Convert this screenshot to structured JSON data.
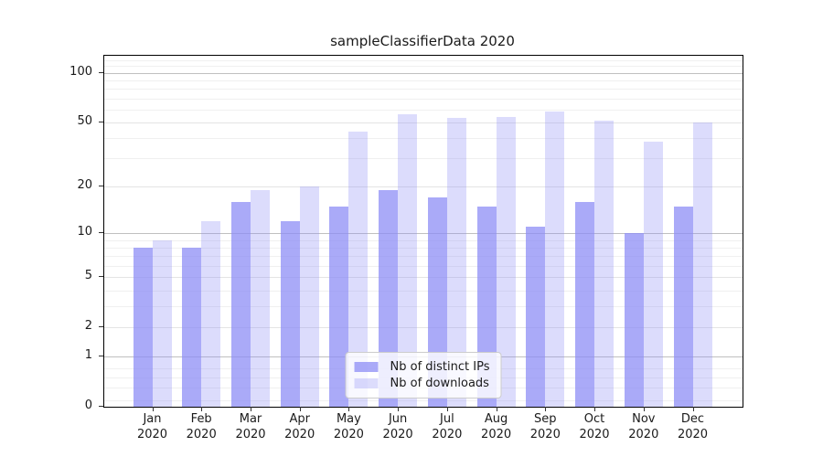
{
  "chart_data": {
    "type": "bar",
    "title": "sampleClassifierData 2020",
    "categories": [
      "Jan",
      "Feb",
      "Mar",
      "Apr",
      "May",
      "Jun",
      "Jul",
      "Aug",
      "Sep",
      "Oct",
      "Nov",
      "Dec"
    ],
    "x_year": "2020",
    "series": [
      {
        "name": "Nb of distinct IPs",
        "color": "rgba(140,140,246,0.74)",
        "color_hex": "#a6a6f7",
        "values": [
          8,
          8,
          16,
          12,
          15,
          19,
          17,
          15,
          11,
          16,
          10,
          15
        ]
      },
      {
        "name": "Nb of downloads",
        "color": "rgba(140,140,246,0.30)",
        "color_hex": "#d9d9f9",
        "values": [
          9,
          12,
          19,
          20,
          44,
          56,
          53,
          54,
          58,
          51,
          38,
          50
        ]
      }
    ],
    "yscale": "symlog",
    "yticks": [
      0,
      1,
      2,
      5,
      10,
      20,
      50,
      100
    ],
    "ylim": [
      0,
      127
    ],
    "grid": true,
    "legend_position": "lower center"
  }
}
